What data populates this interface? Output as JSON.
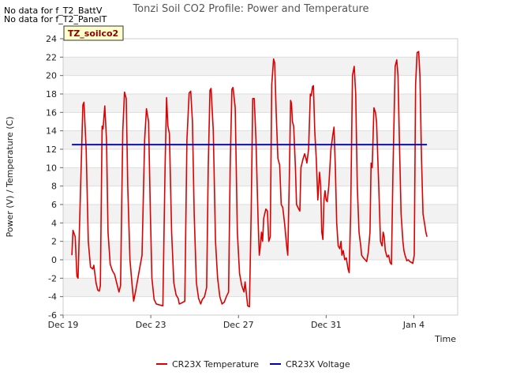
{
  "notes": [
    "No data for f_T2_BattV",
    "No data for f_T2_PanelT"
  ],
  "badge": "TZ_soilco2",
  "chart_data": {
    "type": "line",
    "title": "Tonzi Soil CO2 Profile: Power and Temperature",
    "xlabel": "Time",
    "ylabel": "Power (V) / Temperature (C)",
    "ylim": [
      -6,
      24
    ],
    "yticks": [
      -6,
      -4,
      -2,
      0,
      2,
      4,
      6,
      8,
      10,
      12,
      14,
      16,
      18,
      20,
      22,
      24
    ],
    "xlim_days": [
      0,
      18
    ],
    "xticks": [
      {
        "label": "Dec 19",
        "day": 0
      },
      {
        "label": "Dec 23",
        "day": 4
      },
      {
        "label": "Dec 27",
        "day": 8
      },
      {
        "label": "Dec 31",
        "day": 12
      },
      {
        "label": "Jan 4",
        "day": 16
      }
    ],
    "grid": "horizontal-bands",
    "legend_position": "bottom",
    "series": [
      {
        "name": "CR23X Temperature",
        "color": "#dd0000",
        "points": [
          [
            0.4,
            0.5
          ],
          [
            0.45,
            3.2
          ],
          [
            0.55,
            2.5
          ],
          [
            0.63,
            -1.8
          ],
          [
            0.68,
            -2.0
          ],
          [
            0.8,
            8.0
          ],
          [
            0.9,
            16.8
          ],
          [
            0.95,
            17.1
          ],
          [
            1.05,
            12.0
          ],
          [
            1.15,
            2.0
          ],
          [
            1.25,
            -0.8
          ],
          [
            1.35,
            -1.0
          ],
          [
            1.4,
            -0.6
          ],
          [
            1.5,
            -2.5
          ],
          [
            1.58,
            -3.3
          ],
          [
            1.65,
            -3.4
          ],
          [
            1.7,
            -2.8
          ],
          [
            1.78,
            14.5
          ],
          [
            1.82,
            14.2
          ],
          [
            1.9,
            16.7
          ],
          [
            1.98,
            13.0
          ],
          [
            2.05,
            3.0
          ],
          [
            2.15,
            -0.5
          ],
          [
            2.25,
            -1.2
          ],
          [
            2.35,
            -1.6
          ],
          [
            2.45,
            -2.6
          ],
          [
            2.55,
            -3.5
          ],
          [
            2.62,
            -2.8
          ],
          [
            2.72,
            14.0
          ],
          [
            2.8,
            18.2
          ],
          [
            2.88,
            17.5
          ],
          [
            2.95,
            8.0
          ],
          [
            3.05,
            0.0
          ],
          [
            3.15,
            -2.8
          ],
          [
            3.22,
            -4.5
          ],
          [
            3.3,
            -3.5
          ],
          [
            3.45,
            -1.5
          ],
          [
            3.6,
            0.5
          ],
          [
            3.72,
            13.0
          ],
          [
            3.8,
            16.4
          ],
          [
            3.9,
            15.0
          ],
          [
            3.98,
            5.0
          ],
          [
            4.05,
            -2.0
          ],
          [
            4.15,
            -4.3
          ],
          [
            4.25,
            -4.8
          ],
          [
            4.4,
            -4.9
          ],
          [
            4.55,
            -5.0
          ],
          [
            4.65,
            10.0
          ],
          [
            4.72,
            17.6
          ],
          [
            4.78,
            14.5
          ],
          [
            4.85,
            13.7
          ],
          [
            4.95,
            3.0
          ],
          [
            5.05,
            -2.5
          ],
          [
            5.15,
            -3.8
          ],
          [
            5.25,
            -4.2
          ],
          [
            5.3,
            -4.8
          ],
          [
            5.4,
            -4.7
          ],
          [
            5.55,
            -4.5
          ],
          [
            5.65,
            13.0
          ],
          [
            5.75,
            18.1
          ],
          [
            5.82,
            18.3
          ],
          [
            5.9,
            15.0
          ],
          [
            5.98,
            5.0
          ],
          [
            6.08,
            -2.5
          ],
          [
            6.18,
            -4.2
          ],
          [
            6.28,
            -4.8
          ],
          [
            6.35,
            -4.3
          ],
          [
            6.45,
            -4.0
          ],
          [
            6.55,
            -3.0
          ],
          [
            6.62,
            10.0
          ],
          [
            6.7,
            18.4
          ],
          [
            6.75,
            18.6
          ],
          [
            6.85,
            14.0
          ],
          [
            6.95,
            2.0
          ],
          [
            7.05,
            -2.0
          ],
          [
            7.15,
            -4.0
          ],
          [
            7.25,
            -4.8
          ],
          [
            7.35,
            -4.6
          ],
          [
            7.45,
            -4.0
          ],
          [
            7.55,
            -3.5
          ],
          [
            7.62,
            10.0
          ],
          [
            7.7,
            18.5
          ],
          [
            7.75,
            18.7
          ],
          [
            7.85,
            16.5
          ],
          [
            7.95,
            3.0
          ],
          [
            8.05,
            -1.5
          ],
          [
            8.15,
            -2.8
          ],
          [
            8.25,
            -3.5
          ],
          [
            8.3,
            -2.4
          ],
          [
            8.35,
            -3.4
          ],
          [
            8.42,
            -5.0
          ],
          [
            8.5,
            -5.1
          ],
          [
            8.58,
            5.0
          ],
          [
            8.65,
            17.5
          ],
          [
            8.72,
            17.5
          ],
          [
            8.8,
            13.0
          ],
          [
            8.9,
            4.0
          ],
          [
            8.95,
            0.5
          ],
          [
            9.0,
            1.5
          ],
          [
            9.05,
            3.0
          ],
          [
            9.1,
            2.0
          ],
          [
            9.15,
            4.5
          ],
          [
            9.25,
            5.5
          ],
          [
            9.32,
            5.3
          ],
          [
            9.38,
            2.0
          ],
          [
            9.45,
            2.5
          ],
          [
            9.52,
            19.0
          ],
          [
            9.6,
            21.8
          ],
          [
            9.65,
            21.4
          ],
          [
            9.72,
            16.0
          ],
          [
            9.8,
            11.0
          ],
          [
            9.88,
            10.3
          ],
          [
            9.95,
            6.0
          ],
          [
            10.02,
            5.7
          ],
          [
            10.1,
            4.0
          ],
          [
            10.2,
            1.5
          ],
          [
            10.25,
            0.5
          ],
          [
            10.32,
            9.0
          ],
          [
            10.38,
            17.3
          ],
          [
            10.42,
            17.0
          ],
          [
            10.46,
            15.0
          ],
          [
            10.52,
            14.5
          ],
          [
            10.6,
            10.0
          ],
          [
            10.65,
            6.0
          ],
          [
            10.75,
            5.5
          ],
          [
            10.8,
            5.3
          ],
          [
            10.85,
            10.0
          ],
          [
            10.95,
            11.0
          ],
          [
            11.02,
            11.5
          ],
          [
            11.08,
            11.0
          ],
          [
            11.12,
            10.5
          ],
          [
            11.2,
            12.0
          ],
          [
            11.28,
            18.0
          ],
          [
            11.32,
            17.8
          ],
          [
            11.38,
            18.8
          ],
          [
            11.42,
            18.9
          ],
          [
            11.48,
            14.0
          ],
          [
            11.55,
            11.0
          ],
          [
            11.62,
            6.5
          ],
          [
            11.7,
            9.5
          ],
          [
            11.75,
            8.0
          ],
          [
            11.8,
            3.0
          ],
          [
            11.85,
            2.2
          ],
          [
            11.9,
            6.5
          ],
          [
            11.95,
            7.5
          ],
          [
            12.0,
            6.5
          ],
          [
            12.05,
            6.3
          ],
          [
            12.12,
            8.0
          ],
          [
            12.22,
            12.0
          ],
          [
            12.3,
            13.5
          ],
          [
            12.36,
            14.4
          ],
          [
            12.42,
            10.0
          ],
          [
            12.48,
            4.0
          ],
          [
            12.55,
            1.5
          ],
          [
            12.62,
            1.2
          ],
          [
            12.68,
            2.0
          ],
          [
            12.72,
            0.5
          ],
          [
            12.78,
            1.0
          ],
          [
            12.85,
            0.0
          ],
          [
            12.92,
            0.2
          ],
          [
            13.0,
            -1.0
          ],
          [
            13.05,
            -1.4
          ],
          [
            13.12,
            5.0
          ],
          [
            13.2,
            20.0
          ],
          [
            13.28,
            21.0
          ],
          [
            13.35,
            18.0
          ],
          [
            13.42,
            8.0
          ],
          [
            13.5,
            3.0
          ],
          [
            13.58,
            1.5
          ],
          [
            13.62,
            0.5
          ],
          [
            13.7,
            0.2
          ],
          [
            13.78,
            0.0
          ],
          [
            13.85,
            -0.2
          ],
          [
            13.92,
            0.8
          ],
          [
            14.0,
            3.0
          ],
          [
            14.05,
            10.5
          ],
          [
            14.1,
            10.0
          ],
          [
            14.18,
            16.5
          ],
          [
            14.25,
            16.0
          ],
          [
            14.3,
            15.0
          ],
          [
            14.4,
            8.0
          ],
          [
            14.48,
            2.0
          ],
          [
            14.55,
            1.5
          ],
          [
            14.6,
            3.0
          ],
          [
            14.65,
            2.5
          ],
          [
            14.7,
            1.0
          ],
          [
            14.78,
            0.3
          ],
          [
            14.85,
            0.5
          ],
          [
            14.92,
            -0.3
          ],
          [
            14.98,
            -0.5
          ],
          [
            15.05,
            10.0
          ],
          [
            15.15,
            21.0
          ],
          [
            15.22,
            21.7
          ],
          [
            15.28,
            20.0
          ],
          [
            15.35,
            12.0
          ],
          [
            15.42,
            5.0
          ],
          [
            15.5,
            2.0
          ],
          [
            15.55,
            1.0
          ],
          [
            15.6,
            0.5
          ],
          [
            15.68,
            -0.1
          ],
          [
            15.75,
            0.0
          ],
          [
            15.82,
            -0.2
          ],
          [
            15.9,
            -0.3
          ],
          [
            15.95,
            -0.4
          ],
          [
            16.02,
            0.5
          ],
          [
            16.08,
            19.0
          ],
          [
            16.15,
            22.5
          ],
          [
            16.22,
            22.6
          ],
          [
            16.28,
            20.0
          ],
          [
            16.35,
            11.0
          ],
          [
            16.42,
            5.0
          ],
          [
            16.5,
            3.8
          ],
          [
            16.55,
            3.0
          ],
          [
            16.6,
            2.5
          ]
        ]
      },
      {
        "name": "CR23X Voltage",
        "color": "#0000aa",
        "points": [
          [
            0.4,
            12.5
          ],
          [
            16.6,
            12.5
          ]
        ]
      }
    ]
  }
}
